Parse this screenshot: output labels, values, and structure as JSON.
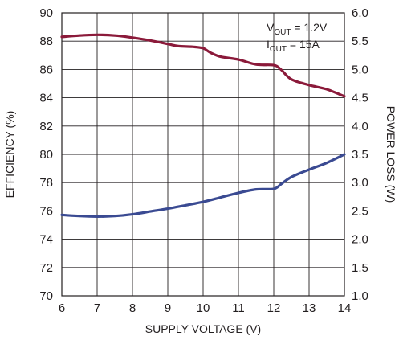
{
  "chart_data": {
    "type": "line",
    "xlabel": "SUPPLY VOLTAGE (V)",
    "ylabel_left": "EFFICIENCY (%)",
    "ylabel_right": "POWER LOSS (W)",
    "xlim": [
      6,
      14
    ],
    "ylim_left": [
      70,
      90
    ],
    "ylim_right": [
      1.0,
      6.0
    ],
    "x_ticks": [
      "6",
      "7",
      "8",
      "9",
      "10",
      "11",
      "12",
      "13",
      "14"
    ],
    "y_left_ticks": [
      "70",
      "72",
      "74",
      "76",
      "78",
      "80",
      "82",
      "84",
      "86",
      "88",
      "90"
    ],
    "y_right_ticks": [
      "1.0",
      "1.5",
      "2.0",
      "2.5",
      "3.0",
      "3.5",
      "4.0",
      "4.5",
      "5.0",
      "5.5",
      "6.0"
    ],
    "grid": true,
    "annotation": {
      "line1": {
        "main": "V",
        "sub": "OUT",
        "rest": " = 1.2V"
      },
      "line2": {
        "main": "I",
        "sub": "OUT",
        "rest": " = 15A"
      }
    },
    "series": [
      {
        "axis": "left",
        "color": "#8b1a3a",
        "x": [
          6,
          6.5,
          7,
          7.5,
          8,
          8.5,
          9,
          9.3,
          9.7,
          10,
          10.2,
          10.5,
          11,
          11.5,
          12,
          12.2,
          12.5,
          13,
          13.5,
          14
        ],
        "y": [
          88.3,
          88.4,
          88.45,
          88.4,
          88.25,
          88.05,
          87.8,
          87.65,
          87.6,
          87.5,
          87.2,
          86.9,
          86.7,
          86.35,
          86.3,
          86.0,
          85.3,
          84.9,
          84.6,
          84.1
        ]
      },
      {
        "axis": "right",
        "color": "#3a4a92",
        "x": [
          6,
          6.5,
          7,
          7.5,
          8,
          8.5,
          9,
          9.5,
          10,
          10.5,
          11,
          11.5,
          12,
          12.2,
          12.5,
          13,
          13.5,
          14
        ],
        "y": [
          2.43,
          2.41,
          2.4,
          2.41,
          2.44,
          2.49,
          2.54,
          2.6,
          2.66,
          2.74,
          2.82,
          2.88,
          2.89,
          2.97,
          3.1,
          3.23,
          3.35,
          3.5
        ]
      }
    ]
  }
}
